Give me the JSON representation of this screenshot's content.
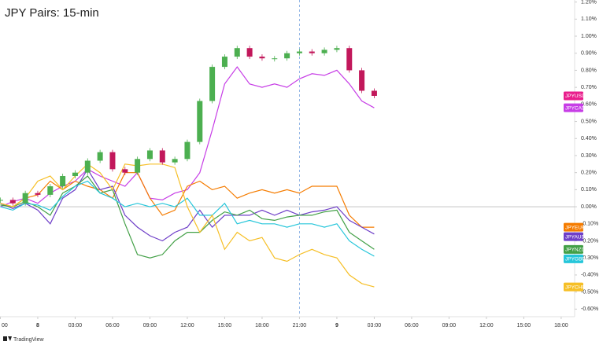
{
  "chart_data": {
    "type": "line",
    "title": "JPY Pairs: 15-min",
    "footer": "TradingView",
    "x": [
      -3,
      -2,
      -1,
      0,
      1,
      2,
      3,
      4,
      5,
      6,
      7,
      8,
      9,
      10,
      11,
      12,
      13,
      14,
      15,
      16,
      17,
      18,
      19,
      20,
      21,
      22,
      23,
      24,
      25,
      26,
      27
    ],
    "xlim": [
      -3.03,
      43.08
    ],
    "xticks": [
      {
        "value": -3,
        "label": "00"
      },
      {
        "value": 0,
        "label": "8"
      },
      {
        "value": 3,
        "label": "03:00"
      },
      {
        "value": 6,
        "label": "06:00"
      },
      {
        "value": 9,
        "label": "09:00"
      },
      {
        "value": 12,
        "label": "12:00"
      },
      {
        "value": 15,
        "label": "15:00"
      },
      {
        "value": 18,
        "label": "18:00"
      },
      {
        "value": 21,
        "label": "21:00"
      },
      {
        "value": 24,
        "label": "9"
      },
      {
        "value": 27,
        "label": "03:00"
      },
      {
        "value": 30,
        "label": "06:00"
      },
      {
        "value": 33,
        "label": "09:00"
      },
      {
        "value": 36,
        "label": "12:00"
      },
      {
        "value": 39,
        "label": "15:00"
      },
      {
        "value": 42,
        "label": "18:00"
      }
    ],
    "ylim": [
      -0.64,
      1.212
    ],
    "yticks": [
      {
        "value": 1.2,
        "label": "1.20%"
      },
      {
        "value": 1.1,
        "label": "1.10%"
      },
      {
        "value": 1.0,
        "label": "1.00%"
      },
      {
        "value": 0.9,
        "label": "0.90%"
      },
      {
        "value": 0.8,
        "label": "0.80%"
      },
      {
        "value": 0.7,
        "label": "0.70%"
      },
      {
        "value": 0.6,
        "label": "0.60%"
      },
      {
        "value": 0.5,
        "label": "0.50%"
      },
      {
        "value": 0.4,
        "label": "0.40%"
      },
      {
        "value": 0.3,
        "label": "0.30%"
      },
      {
        "value": 0.2,
        "label": "0.20%"
      },
      {
        "value": 0.1,
        "label": "0.10%"
      },
      {
        "value": 0,
        "label": "0.00%"
      },
      {
        "value": -0.1,
        "label": "-0.10%"
      },
      {
        "value": -0.2,
        "label": "-0.20%"
      },
      {
        "value": -0.3,
        "label": "-0.30%"
      },
      {
        "value": -0.4,
        "label": "-0.40%"
      },
      {
        "value": -0.5,
        "label": "-0.50%"
      },
      {
        "value": -0.6,
        "label": "-0.60%"
      }
    ],
    "crosshair_x": 21,
    "up_color": "#4caf50",
    "down_color": "#c2185b",
    "series": [
      {
        "name": "JPYUSD",
        "style": "candle",
        "color": "#e91e8c",
        "values": [
          0.04,
          0.02,
          0.08,
          0.07,
          0.12,
          0.18,
          0.2,
          0.27,
          0.32,
          0.22,
          0.2,
          0.28,
          0.33,
          0.26,
          0.28,
          0.38,
          0.62,
          0.82,
          0.88,
          0.93,
          0.88,
          0.87,
          0.87,
          0.9,
          0.91,
          0.9,
          0.92,
          0.93,
          0.8,
          0.68,
          0.65
        ]
      },
      {
        "name": "JPYCAD",
        "color": "#c73ee6",
        "values": [
          0.0,
          0.03,
          0.05,
          0.02,
          0.08,
          0.12,
          0.15,
          0.22,
          0.18,
          0.15,
          0.12,
          0.2,
          0.05,
          0.04,
          0.08,
          0.1,
          0.2,
          0.45,
          0.72,
          0.82,
          0.72,
          0.7,
          0.72,
          0.7,
          0.75,
          0.78,
          0.77,
          0.8,
          0.72,
          0.62,
          0.58
        ]
      },
      {
        "name": "JPYEUR",
        "color": "#f57c00",
        "values": [
          0.02,
          0.0,
          0.05,
          0.07,
          0.15,
          0.1,
          0.15,
          0.12,
          0.1,
          0.05,
          0.2,
          0.2,
          0.05,
          -0.05,
          -0.02,
          0.12,
          0.15,
          0.1,
          0.12,
          0.05,
          0.08,
          0.1,
          0.08,
          0.1,
          0.08,
          0.12,
          0.12,
          0.12,
          -0.05,
          -0.12,
          -0.12
        ]
      },
      {
        "name": "JPYAUD",
        "color": "#6f3fc8",
        "values": [
          0.02,
          -0.01,
          0.02,
          -0.02,
          -0.1,
          0.05,
          0.1,
          0.22,
          0.1,
          0.12,
          -0.05,
          -0.12,
          -0.17,
          -0.2,
          -0.15,
          -0.12,
          -0.02,
          -0.12,
          -0.05,
          -0.05,
          -0.05,
          -0.02,
          -0.05,
          -0.02,
          -0.05,
          -0.03,
          -0.02,
          0.0,
          -0.08,
          -0.12,
          -0.16
        ]
      },
      {
        "name": "JPYNZD",
        "color": "#43a047",
        "values": [
          0.01,
          0.0,
          0.03,
          0.0,
          -0.05,
          0.08,
          0.12,
          0.18,
          0.08,
          0.1,
          -0.1,
          -0.28,
          -0.3,
          -0.28,
          -0.2,
          -0.15,
          -0.15,
          -0.08,
          -0.03,
          -0.05,
          -0.02,
          -0.07,
          -0.08,
          -0.06,
          -0.05,
          -0.05,
          -0.03,
          -0.02,
          -0.15,
          -0.2,
          -0.25
        ]
      },
      {
        "name": "JPYGBP",
        "color": "#26c6da",
        "values": [
          0.0,
          -0.02,
          0.02,
          0.01,
          -0.02,
          0.06,
          0.12,
          0.15,
          0.08,
          0.05,
          0.0,
          0.02,
          0.0,
          0.02,
          0.0,
          0.05,
          -0.05,
          -0.05,
          0.02,
          -0.1,
          -0.08,
          -0.1,
          -0.1,
          -0.12,
          -0.1,
          -0.1,
          -0.12,
          -0.1,
          -0.2,
          -0.25,
          -0.29
        ]
      },
      {
        "name": "JPYCHF",
        "color": "#f6bf26",
        "values": [
          0.02,
          0.0,
          0.05,
          0.15,
          0.18,
          0.1,
          0.18,
          0.25,
          0.2,
          0.1,
          0.25,
          0.24,
          0.25,
          0.25,
          0.23,
          0.0,
          -0.15,
          -0.05,
          -0.25,
          -0.15,
          -0.2,
          -0.18,
          -0.3,
          -0.32,
          -0.28,
          -0.25,
          -0.28,
          -0.3,
          -0.4,
          -0.45,
          -0.47
        ]
      }
    ]
  }
}
